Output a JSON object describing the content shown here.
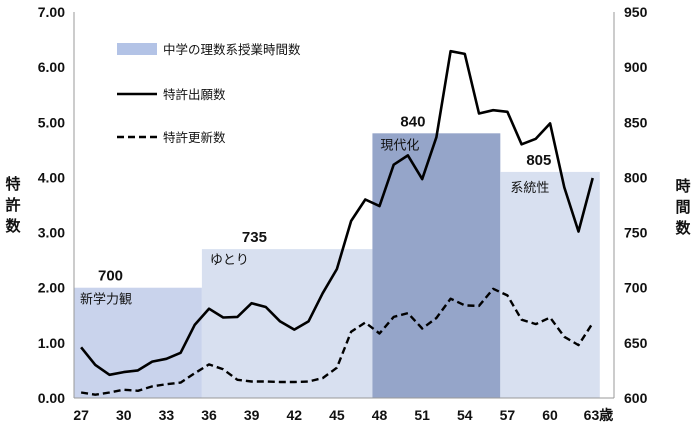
{
  "chart_data": {
    "type": "line",
    "title": "",
    "ylabel_left": "特許数",
    "ylabel_right": "時間数",
    "x_tick_labels": [
      "27",
      "30",
      "33",
      "36",
      "39",
      "42",
      "45",
      "48",
      "51",
      "54",
      "57",
      "60",
      "63歳"
    ],
    "y_left_tick_labels": [
      "0.00",
      "1.00",
      "2.00",
      "3.00",
      "4.00",
      "5.00",
      "6.00",
      "7.00"
    ],
    "y_right_tick_labels": [
      "600",
      "650",
      "700",
      "750",
      "800",
      "850",
      "900",
      "950"
    ],
    "ylim_left": [
      0,
      7
    ],
    "ylim_right": [
      600,
      950
    ],
    "xlim": [
      26.5,
      64.5
    ],
    "legend": [
      {
        "label": "中学の理数系授業時間数",
        "style": "bar"
      },
      {
        "label": "特許出願数",
        "style": "solid"
      },
      {
        "label": "特許更新数",
        "style": "dashed"
      }
    ],
    "legend_position": "top-left",
    "bar_series": {
      "name": "中学の理数系授業時間数",
      "eras": [
        {
          "name": "新学力観",
          "value": 700,
          "label": "700",
          "start": 26.5,
          "end": 35.5,
          "color": "#c9d3ec"
        },
        {
          "name": "ゆとり",
          "value": 735,
          "label": "735",
          "start": 35.5,
          "end": 47.5,
          "color": "#d8e0f0"
        },
        {
          "name": "現代化",
          "value": 840,
          "label": "840",
          "start": 47.5,
          "end": 56.5,
          "color": "#95a5c9"
        },
        {
          "name": "系統性",
          "value": 805,
          "label": "805",
          "start": 56.5,
          "end": 63.5,
          "color": "#d8e0f0"
        }
      ]
    },
    "x": [
      27,
      28,
      29,
      30,
      31,
      32,
      33,
      34,
      35,
      36,
      37,
      38,
      39,
      40,
      41,
      42,
      43,
      44,
      45,
      46,
      47,
      48,
      49,
      50,
      51,
      52,
      53,
      54,
      55,
      56,
      57,
      58,
      59,
      60,
      61,
      62,
      63
    ],
    "series": [
      {
        "name": "特許出願数",
        "axis": "left",
        "style": "solid",
        "color": "#000000",
        "values": [
          0.92,
          0.6,
          0.42,
          0.47,
          0.5,
          0.66,
          0.71,
          0.82,
          1.33,
          1.62,
          1.46,
          1.47,
          1.72,
          1.65,
          1.39,
          1.24,
          1.39,
          1.9,
          2.34,
          3.21,
          3.6,
          3.48,
          4.23,
          4.4,
          3.97,
          4.73,
          6.29,
          6.24,
          5.16,
          5.22,
          5.19,
          4.6,
          4.7,
          4.98,
          3.82,
          3.02,
          3.99
        ]
      },
      {
        "name": "特許更新数",
        "axis": "left",
        "style": "dashed",
        "color": "#000000",
        "values": [
          0.1,
          0.06,
          0.1,
          0.15,
          0.13,
          0.21,
          0.25,
          0.28,
          0.45,
          0.61,
          0.52,
          0.33,
          0.3,
          0.3,
          0.29,
          0.29,
          0.3,
          0.36,
          0.55,
          1.2,
          1.37,
          1.17,
          1.47,
          1.54,
          1.26,
          1.45,
          1.8,
          1.68,
          1.67,
          1.98,
          1.86,
          1.42,
          1.34,
          1.46,
          1.11,
          0.96,
          1.36
        ]
      }
    ]
  }
}
